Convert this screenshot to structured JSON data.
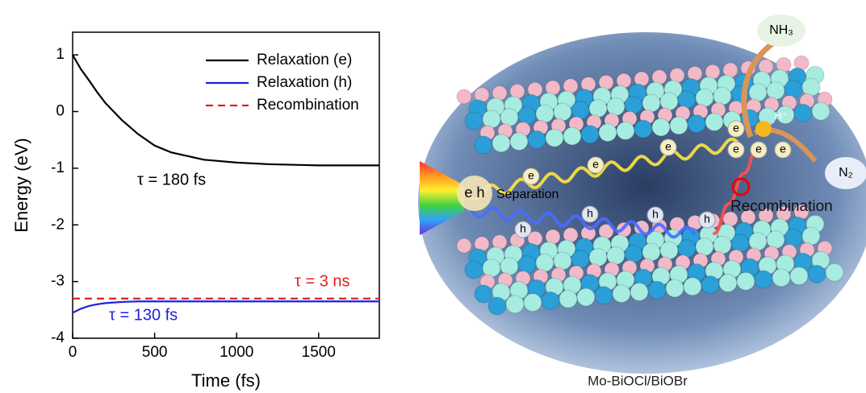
{
  "chart_data": {
    "type": "line",
    "x_label": "Time (fs)",
    "y_label": "Energy (eV)",
    "x": [
      0,
      50,
      100,
      150,
      200,
      300,
      400,
      500,
      600,
      800,
      1000,
      1200,
      1500,
      1870
    ],
    "series": [
      {
        "name": "Relaxation (e)",
        "color": "#000000",
        "dash": false,
        "values": [
          1,
          0.75,
          0.55,
          0.34,
          0.15,
          -0.15,
          -0.4,
          -0.6,
          -0.72,
          -0.85,
          -0.9,
          -0.93,
          -0.95,
          -0.95
        ]
      },
      {
        "name": "Relaxation (h)",
        "color": "#1f1fe0",
        "dash": false,
        "values": [
          -3.55,
          -3.48,
          -3.43,
          -3.4,
          -3.38,
          -3.36,
          -3.35,
          -3.35,
          -3.35,
          -3.35,
          -3.35,
          -3.35,
          -3.35,
          -3.35
        ]
      },
      {
        "name": "Recombination",
        "color": "#e02020",
        "dash": true,
        "values": [
          -3.3,
          -3.3,
          -3.3,
          -3.3,
          -3.3,
          -3.3,
          -3.3,
          -3.3,
          -3.3,
          -3.3,
          -3.3,
          -3.3,
          -3.3,
          -3.3
        ]
      }
    ],
    "xlim": [
      0,
      1870
    ],
    "ylim": [
      -4,
      1.4
    ],
    "xticks": [
      0,
      500,
      1000,
      1500
    ],
    "yticks": [
      -4,
      -3,
      -2,
      -1,
      0,
      1
    ],
    "legend": "upper right",
    "annotations": [
      {
        "text": "τ = 180 fs",
        "color": "#000000"
      },
      {
        "text": "τ = 3 ns",
        "color": "#e02020"
      },
      {
        "text": "τ = 130 fs",
        "color": "#1f1fe0"
      }
    ]
  },
  "illustration": {
    "caption": "Mo-BiOCl/BiOBr",
    "product": "NH₃",
    "reactant": "N₂",
    "proton": "H⁺",
    "pair_label": "e h",
    "separation": "Separation",
    "recombination": "Recombination",
    "electron_labels": [
      "e",
      "e",
      "e",
      "e",
      "e",
      "e",
      "e"
    ],
    "hole_labels": [
      "h",
      "h",
      "h",
      "h"
    ]
  }
}
